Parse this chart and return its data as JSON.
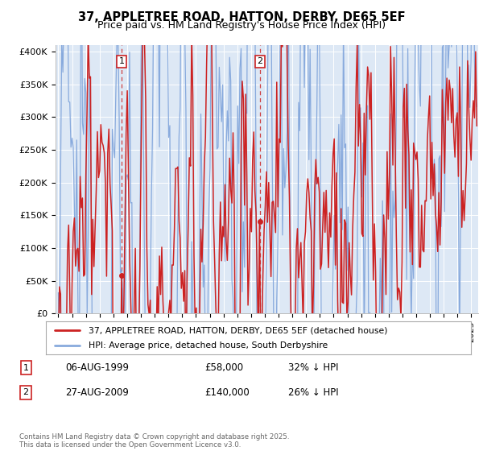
{
  "title": "37, APPLETREE ROAD, HATTON, DERBY, DE65 5EF",
  "subtitle": "Price paid vs. HM Land Registry's House Price Index (HPI)",
  "ylabel_vals": [
    "£0",
    "£50K",
    "£100K",
    "£150K",
    "£200K",
    "£250K",
    "£300K",
    "£350K",
    "£400K"
  ],
  "yticks": [
    0,
    50000,
    100000,
    150000,
    200000,
    250000,
    300000,
    350000,
    400000
  ],
  "ylim": [
    0,
    410000
  ],
  "xlim_start": 1994.8,
  "xlim_end": 2025.5,
  "sale1_x": 1999.6,
  "sale1_y": 58000,
  "sale2_x": 2009.65,
  "sale2_y": 140000,
  "legend_label_red": "37, APPLETREE ROAD, HATTON, DERBY, DE65 5EF (detached house)",
  "legend_label_blue": "HPI: Average price, detached house, South Derbyshire",
  "footer": "Contains HM Land Registry data © Crown copyright and database right 2025.\nThis data is licensed under the Open Government Licence v3.0.",
  "line_color_red": "#cc2222",
  "line_color_blue": "#88aadd",
  "bg_color": "#dde8f5",
  "grid_color": "#ffffff",
  "dashed_color": "#cc2222",
  "title_fontsize": 10.5,
  "subtitle_fontsize": 9
}
